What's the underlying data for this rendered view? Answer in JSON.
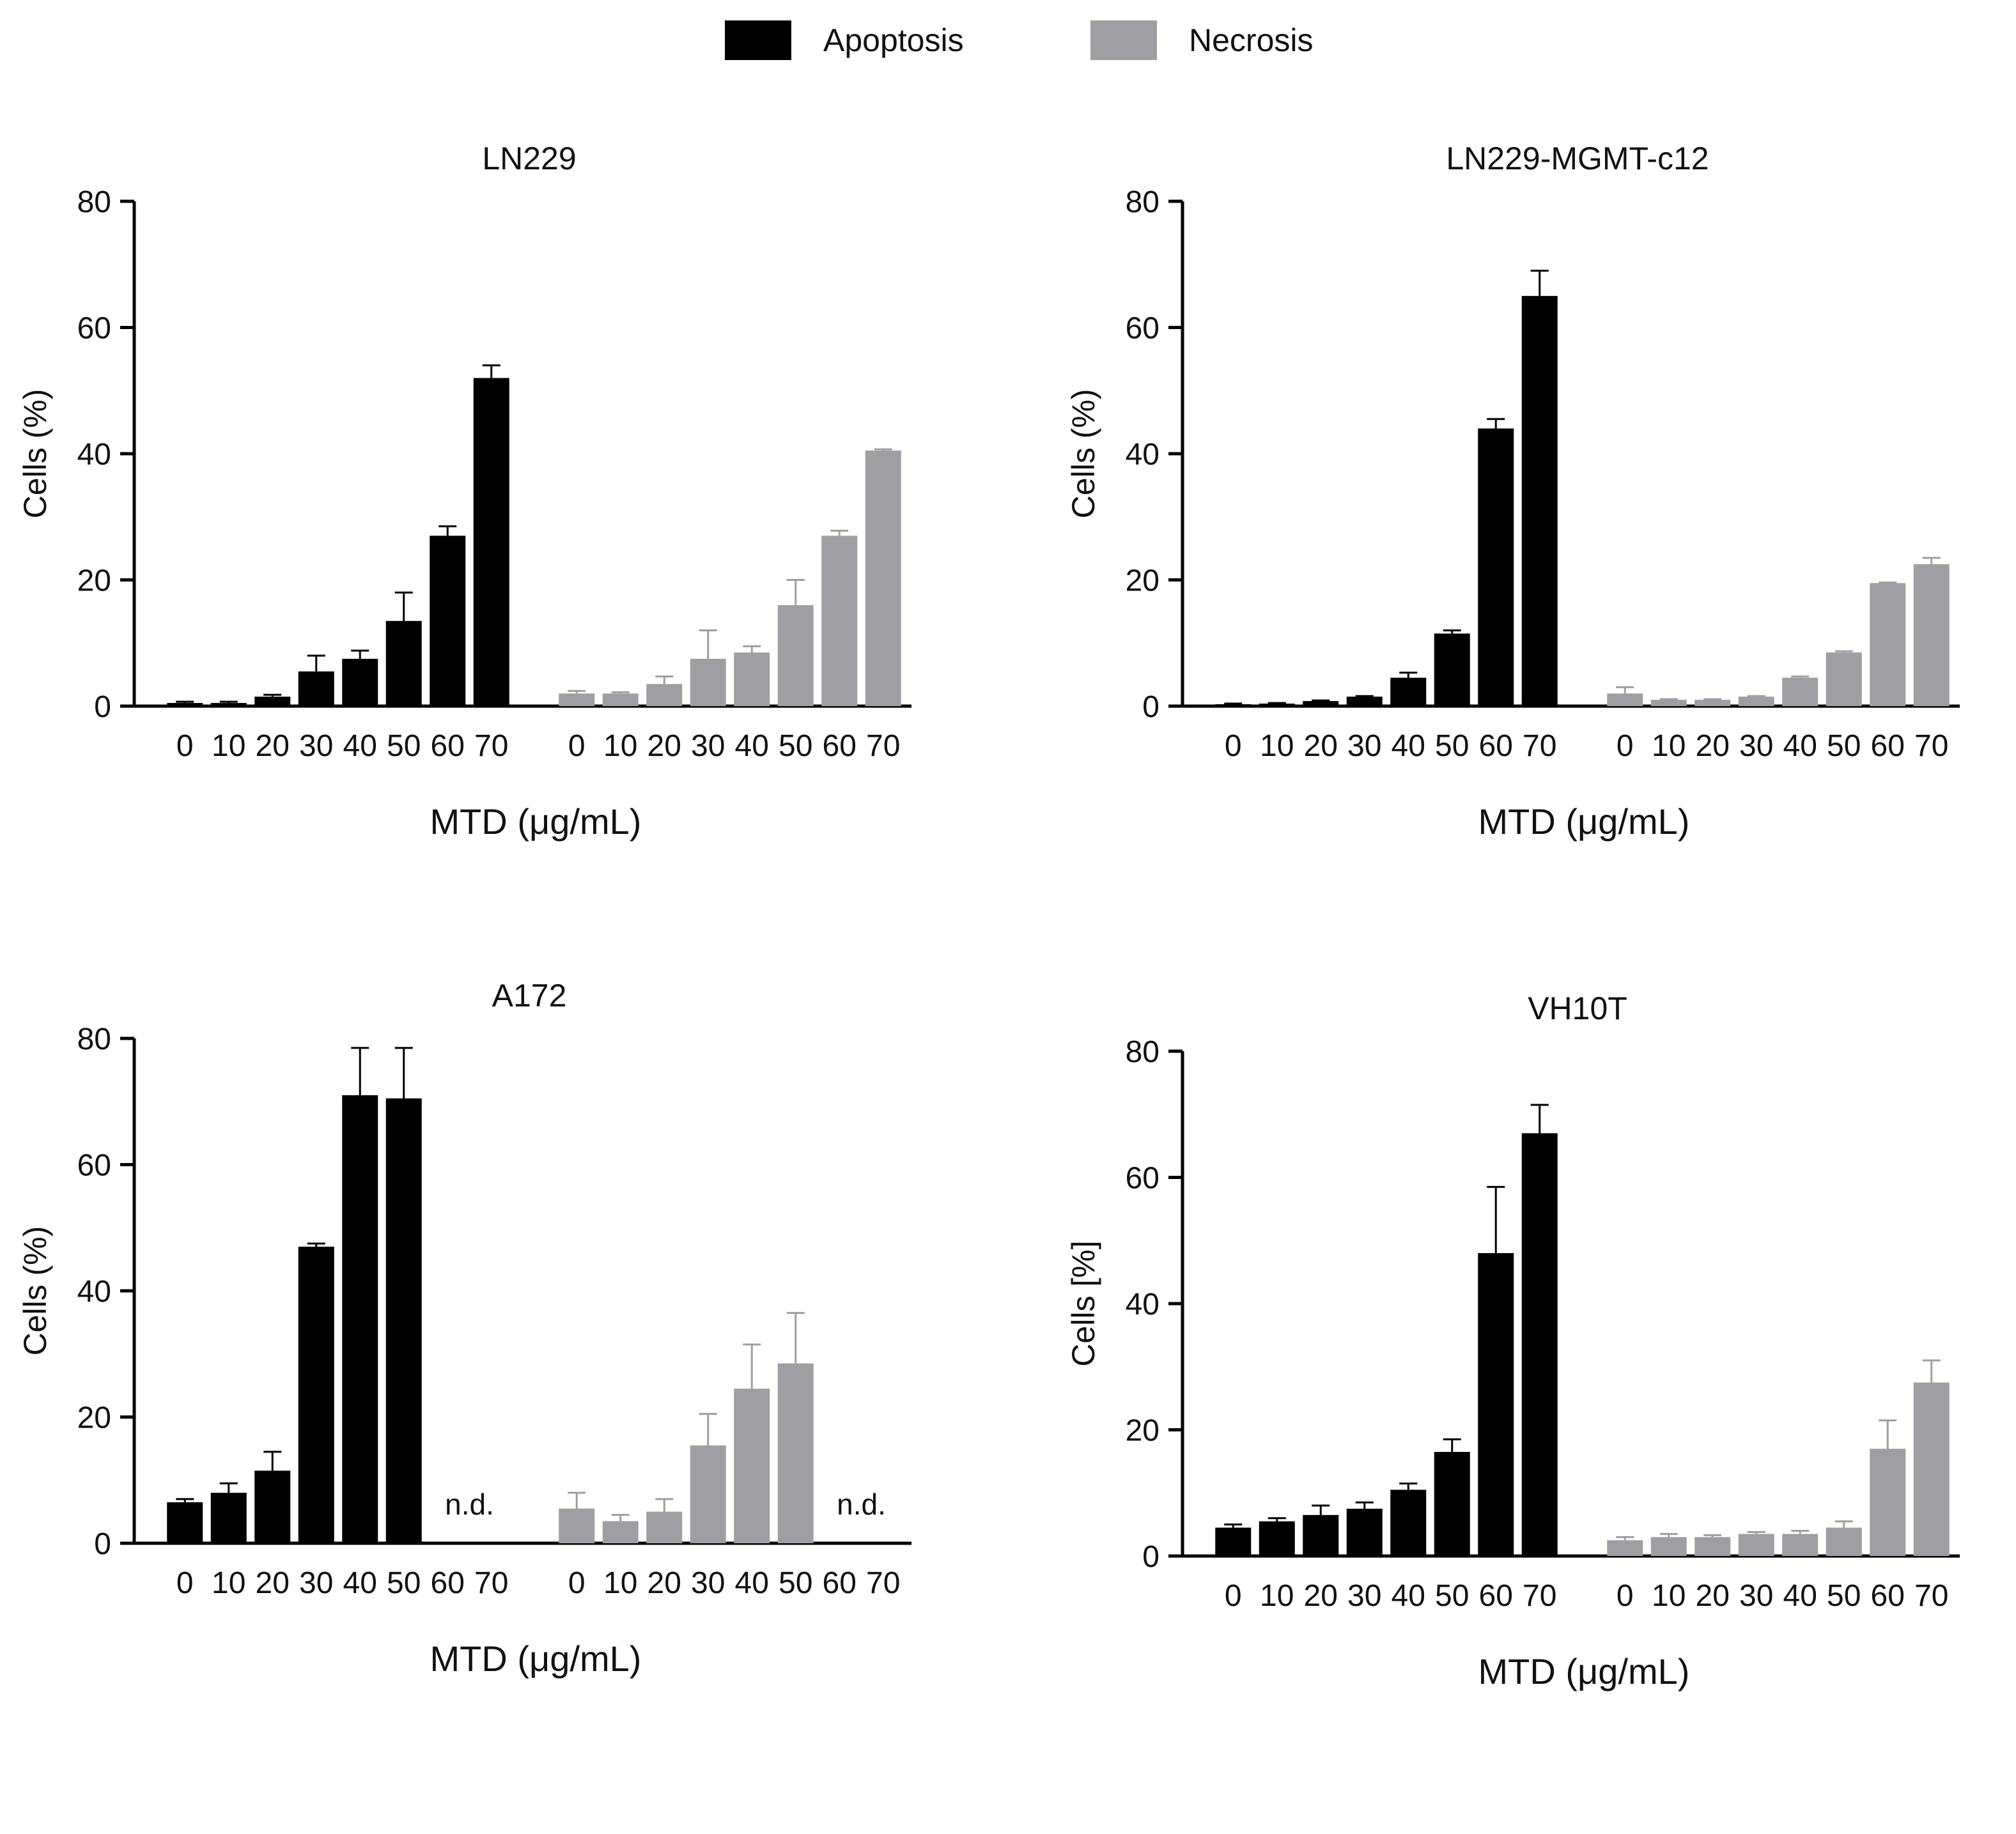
{
  "legend": [
    {
      "label": "Apoptosis",
      "color": "#000000"
    },
    {
      "label": "Necrosis",
      "color": "#9f9fa3"
    }
  ],
  "chart_data": [
    {
      "type": "bar",
      "title": "LN229",
      "xlabel": "MTD (μg/mL)",
      "ylabel": "Cells (%)",
      "ylim": [
        0,
        80
      ],
      "yticks": [
        "0",
        "20",
        "40",
        "60",
        "80"
      ],
      "categories": [
        "0",
        "10",
        "20",
        "30",
        "40",
        "50",
        "60",
        "70"
      ],
      "series": [
        {
          "name": "Apoptosis",
          "values": [
            0.5,
            0.5,
            1.5,
            5.5,
            7.5,
            13.5,
            27,
            52
          ],
          "errors": [
            0.2,
            0.2,
            0.3,
            2.5,
            1.3,
            4.5,
            1.5,
            2
          ]
        },
        {
          "name": "Necrosis",
          "values": [
            2,
            2,
            3.5,
            7.5,
            8.5,
            16,
            27,
            40.5
          ],
          "errors": [
            0.4,
            0.2,
            1.2,
            4.5,
            1.0,
            4,
            0.8,
            0.2
          ]
        }
      ],
      "annotations": []
    },
    {
      "type": "bar",
      "title": "LN229-MGMT-c12",
      "xlabel": "MTD (μg/mL)",
      "ylabel": "Cells (%)",
      "ylim": [
        0,
        80
      ],
      "yticks": [
        "0",
        "20",
        "40",
        "60",
        "80"
      ],
      "categories": [
        "0",
        "10",
        "20",
        "30",
        "40",
        "50",
        "60",
        "70"
      ],
      "series": [
        {
          "name": "Apoptosis",
          "values": [
            0.3,
            0.4,
            0.8,
            1.5,
            4.5,
            11.5,
            44,
            65
          ],
          "errors": [
            0.1,
            0.1,
            0.1,
            0.1,
            0.8,
            0.5,
            1.5,
            4
          ]
        },
        {
          "name": "Necrosis",
          "values": [
            2,
            1,
            1,
            1.5,
            4.5,
            8.5,
            19.5,
            22.5
          ],
          "errors": [
            1,
            0.1,
            0.1,
            0.1,
            0.2,
            0.2,
            0.1,
            1
          ]
        }
      ],
      "annotations": []
    },
    {
      "type": "bar",
      "title": "A172",
      "xlabel": "MTD (μg/mL)",
      "ylabel": "Cells (%)",
      "ylim": [
        0,
        80
      ],
      "yticks": [
        "0",
        "20",
        "40",
        "60",
        "80"
      ],
      "categories": [
        "0",
        "10",
        "20",
        "30",
        "40",
        "50",
        "60",
        "70"
      ],
      "series": [
        {
          "name": "Apoptosis",
          "values": [
            6.5,
            8,
            11.5,
            47,
            71,
            70.5,
            null,
            null
          ],
          "errors": [
            0.5,
            1.5,
            3,
            0.5,
            7.5,
            8,
            null,
            null
          ]
        },
        {
          "name": "Necrosis",
          "values": [
            5.5,
            3.5,
            5,
            15.5,
            24.5,
            28.5,
            null,
            null
          ],
          "errors": [
            2.5,
            1,
            2,
            5,
            7,
            8,
            null,
            null
          ]
        }
      ],
      "annotations": [
        {
          "series": "Apoptosis",
          "text": "n.d."
        },
        {
          "series": "Necrosis",
          "text": "n.d."
        }
      ]
    },
    {
      "type": "bar",
      "title": "VH10T",
      "xlabel": "MTD (μg/mL)",
      "ylabel": "Cells [%]",
      "ylim": [
        0,
        80
      ],
      "yticks": [
        "0",
        "20",
        "40",
        "60",
        "80"
      ],
      "categories": [
        "0",
        "10",
        "20",
        "30",
        "40",
        "50",
        "60",
        "70"
      ],
      "series": [
        {
          "name": "Apoptosis",
          "values": [
            4.5,
            5.5,
            6.5,
            7.5,
            10.5,
            16.5,
            48,
            67
          ],
          "errors": [
            0.5,
            0.5,
            1.5,
            1,
            1,
            2,
            10.5,
            4.5
          ]
        },
        {
          "name": "Necrosis",
          "values": [
            2.5,
            3,
            3,
            3.5,
            3.5,
            4.5,
            17,
            27.5
          ],
          "errors": [
            0.5,
            0.5,
            0.3,
            0.3,
            0.5,
            1,
            4.5,
            3.5
          ]
        }
      ],
      "annotations": []
    }
  ]
}
